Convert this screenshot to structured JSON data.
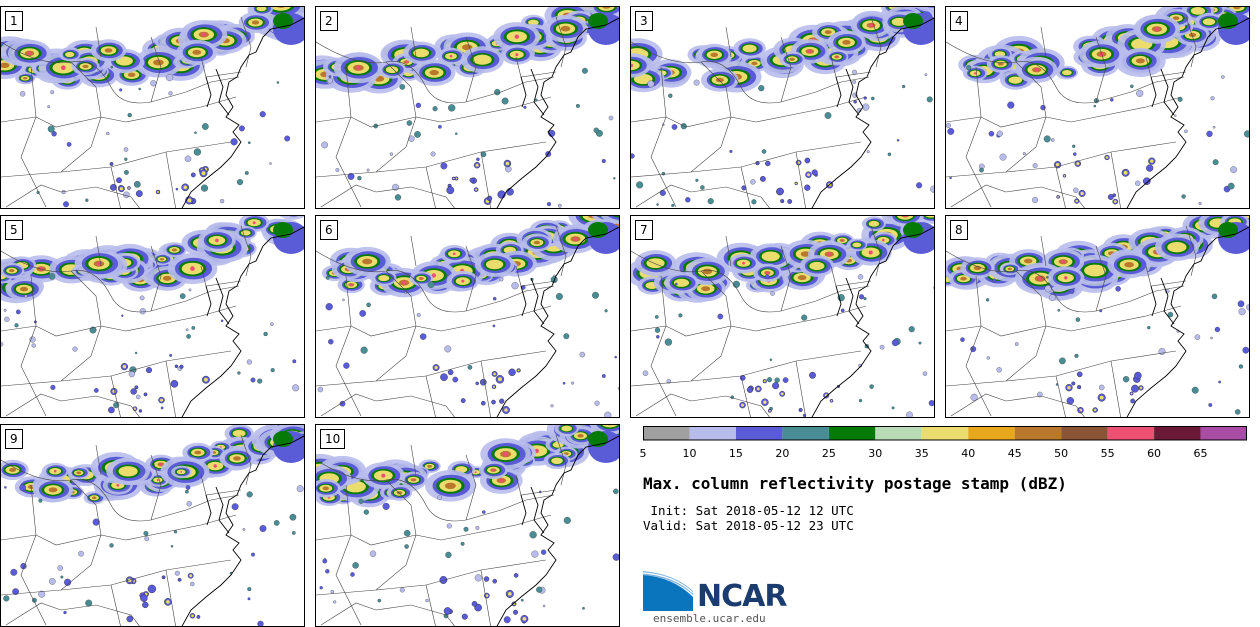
{
  "panels": [
    {
      "label": "1"
    },
    {
      "label": "2"
    },
    {
      "label": "3"
    },
    {
      "label": "4"
    },
    {
      "label": "5"
    },
    {
      "label": "6"
    },
    {
      "label": "7"
    },
    {
      "label": "8"
    },
    {
      "label": "9"
    },
    {
      "label": "10"
    }
  ],
  "colorbar": {
    "ticks": [
      "5",
      "10",
      "15",
      "20",
      "25",
      "30",
      "35",
      "40",
      "45",
      "50",
      "55",
      "60",
      "65"
    ],
    "colors": [
      "#a0a0a0",
      "#b8bceb",
      "#5a5bd6",
      "#4a8c94",
      "#067a06",
      "#b9dcb6",
      "#ebdc6e",
      "#e8a81e",
      "#b9782c",
      "#8a5436",
      "#ec5072",
      "#6a1a36",
      "#a84ca4"
    ]
  },
  "title": "Max. column reflectivity postage stamp (dBZ)",
  "init": " Init: Sat 2018-05-12 12 UTC",
  "valid": "Valid: Sat 2018-05-12 23 UTC",
  "logo": {
    "text": "NCAR",
    "site": "ensemble.ucar.edu"
  }
}
